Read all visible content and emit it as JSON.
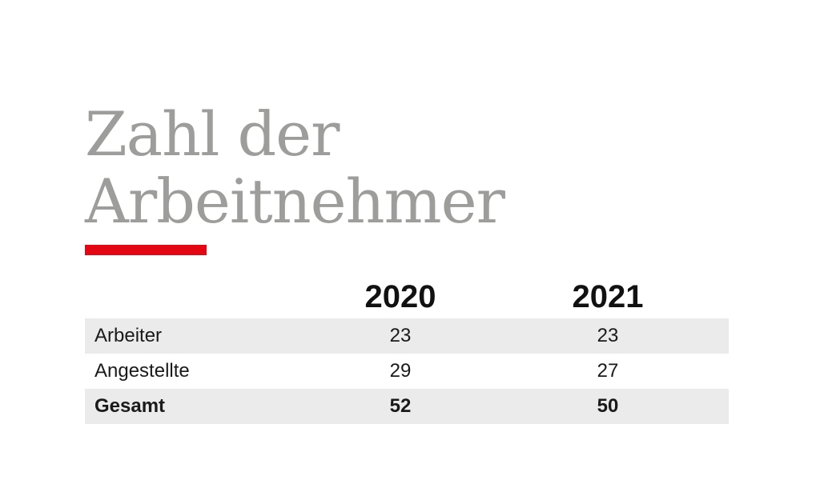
{
  "title_line1": "Zahl der",
  "title_line2": "Arbeitnehmer",
  "colors": {
    "title": "#9d9d9c",
    "accent": "#e30613",
    "row_shade": "#ebebeb"
  },
  "chart_data": {
    "type": "table",
    "title": "Zahl der Arbeitnehmer",
    "columns": [
      "2020",
      "2021"
    ],
    "rows": [
      {
        "label": "Arbeiter",
        "values": [
          23,
          23
        ]
      },
      {
        "label": "Angestellte",
        "values": [
          29,
          27
        ]
      },
      {
        "label": "Gesamt",
        "values": [
          52,
          50
        ]
      }
    ]
  }
}
